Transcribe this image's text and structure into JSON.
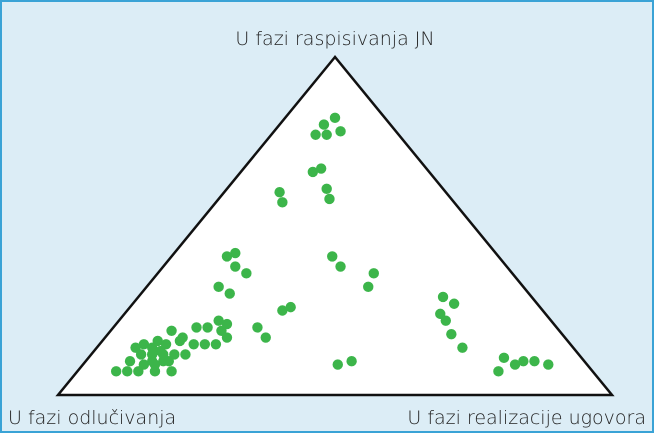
{
  "chart_data": {
    "type": "ternary",
    "top_label": "U fazi raspisivanja JN",
    "left_label": "U fazi odlučivanja",
    "right_label": "U fazi realizacije ugovora",
    "color": "#3cb54a",
    "top": [
      0.82,
      0.8,
      0.78,
      0.77,
      0.77,
      0.67,
      0.66,
      0.61,
      0.58,
      0.6,
      0.57,
      0.42,
      0.41,
      0.38,
      0.36,
      0.32,
      0.3,
      0.41,
      0.38,
      0.36,
      0.32,
      0.26,
      0.25,
      0.2,
      0.17,
      0.29,
      0.27,
      0.24,
      0.22,
      0.18,
      0.14,
      0.11,
      0.09,
      0.07,
      0.1,
      0.1,
      0.09,
      0.09,
      0.1,
      0.22,
      0.21,
      0.2,
      0.2,
      0.19,
      0.17,
      0.19,
      0.16,
      0.15,
      0.14,
      0.15,
      0.12,
      0.12,
      0.15,
      0.15,
      0.15,
      0.17,
      0.16,
      0.14,
      0.13,
      0.12,
      0.12,
      0.1,
      0.09,
      0.07,
      0.07,
      0.07,
      0.1,
      0.1,
      0.1,
      0.07,
      0.07,
      0.12,
      0.09
    ],
    "right": [
      0.09,
      0.08,
      0.12,
      0.08,
      0.1,
      0.14,
      0.13,
      0.18,
      0.2,
      0.1,
      0.12,
      0.11,
      0.1,
      0.13,
      0.16,
      0.13,
      0.16,
      0.29,
      0.32,
      0.39,
      0.4,
      0.29,
      0.28,
      0.26,
      0.29,
      0.55,
      0.58,
      0.57,
      0.59,
      0.62,
      0.66,
      0.75,
      0.78,
      0.76,
      0.79,
      0.81,
      0.84,
      0.46,
      0.48,
      0.18,
      0.2,
      0.15,
      0.17,
      0.2,
      0.14,
      0.11,
      0.1,
      0.08,
      0.07,
      0.12,
      0.15,
      0.17,
      0.17,
      0.19,
      0.21,
      0.22,
      0.14,
      0.1,
      0.12,
      0.11,
      0.09,
      0.08,
      0.11,
      0.09,
      0.07,
      0.11,
      0.12,
      0.14,
      0.15,
      0.14,
      0.17,
      0.13,
      0.13
    ]
  }
}
